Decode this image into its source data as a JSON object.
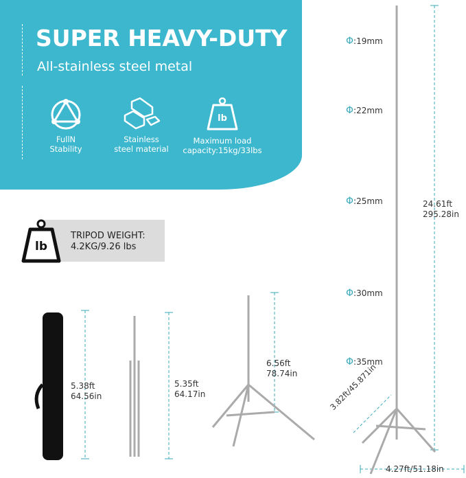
{
  "banner": {
    "title": "SUPER HEAVY-DUTY",
    "subtitle": "All-stainless steel metal",
    "color": "#3db7ce"
  },
  "features": [
    {
      "icon": "triangle-circle-icon",
      "line1": "FullN",
      "line2": "Stability"
    },
    {
      "icon": "steel-bars-icon",
      "line1": "Stainless",
      "line2": "steel material"
    },
    {
      "icon": "weight-lb-icon",
      "line1": "Maximum load",
      "line2": "capacity:15kg/33lbs"
    }
  ],
  "weight": {
    "icon_text": "lb",
    "line1": "TRIPOD WEIGHT:",
    "line2": "4.2KG/9.26 lbs"
  },
  "sizes": [
    {
      "ft": "5.38ft",
      "in": "64.56in"
    },
    {
      "ft": "5.35ft",
      "in": "64.17in"
    },
    {
      "ft": "6.56ft",
      "in": "78.74in"
    },
    {
      "ft": "24.61ft",
      "in": "295.28in"
    }
  ],
  "diameters": [
    "Φ",
    ":19mm",
    ":22mm",
    ":25mm",
    ":30mm",
    ":35mm"
  ],
  "leg_length": "3.82ft/45.871in",
  "footprint": "4.27ft/51.18in"
}
